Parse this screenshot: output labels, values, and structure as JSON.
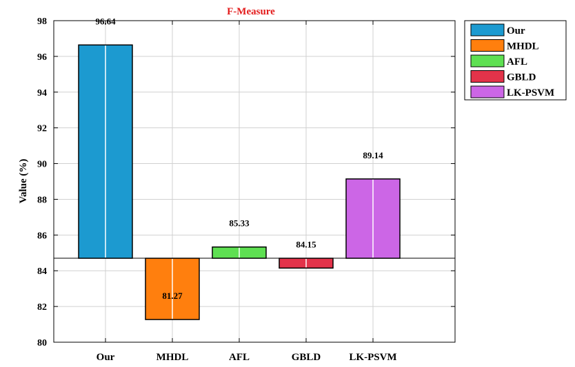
{
  "chart_data": {
    "type": "bar",
    "title": "F-Measure",
    "ylabel": "Value (%)",
    "xlabel": "",
    "ylim": [
      80,
      98
    ],
    "yticks": [
      80,
      82,
      84,
      86,
      88,
      90,
      92,
      94,
      96,
      98
    ],
    "baseline": 84.7,
    "grid": true,
    "legend_position": "outside-top-right",
    "categories": [
      "Our",
      "MHDL",
      "AFL",
      "GBLD",
      "LK-PSVM"
    ],
    "values": [
      96.64,
      81.27,
      85.33,
      84.15,
      89.14
    ],
    "value_labels": [
      "96.64",
      "81.27",
      "85.33",
      "84.15",
      "89.14"
    ],
    "colors": [
      "#1c9ad0",
      "#ff7f0e",
      "#5ee052",
      "#e3334a",
      "#cc66e6"
    ],
    "title_color": "#e31c1c"
  }
}
